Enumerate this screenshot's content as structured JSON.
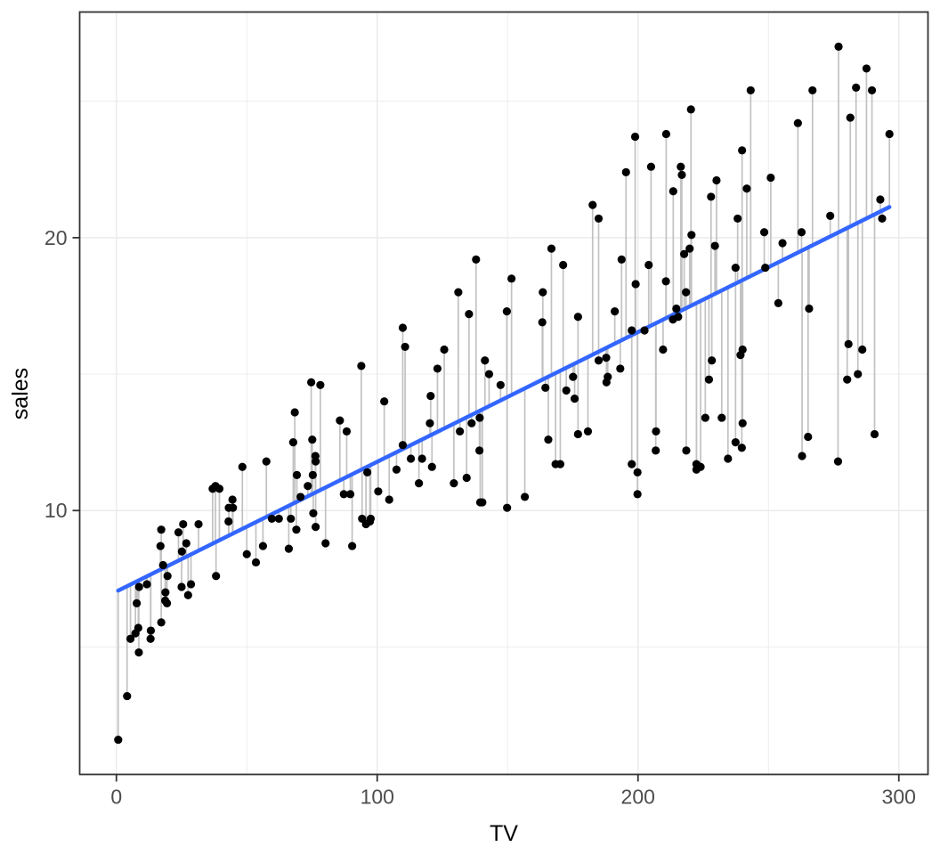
{
  "figure": {
    "background": "#FFFFFF"
  },
  "chart_data": {
    "type": "scatter",
    "title": "",
    "xlabel": "TV",
    "ylabel": "sales",
    "legend_position": "none",
    "grid": true,
    "x_domain": [
      -14.08,
      311.18
    ],
    "y_domain": [
      0.33,
      28.27
    ],
    "x_breaks": [
      0,
      100,
      200,
      300
    ],
    "x_minor_breaks": [
      50,
      150,
      250
    ],
    "y_breaks": [
      10,
      20
    ],
    "y_minor_breaks": [
      5,
      15,
      25
    ],
    "style": {
      "panel_background": "#FFFFFF",
      "panel_border_color": "#333333",
      "grid_major_color": "#EBEBEB",
      "grid_minor_color": "#EBEBEB",
      "tick_mark_color": "#333333",
      "tick_label_color": "#4D4D4D",
      "axis_title_color": "#000000",
      "point_color": "#000000",
      "point_radius": 4.6,
      "residual_segment_color": "#C2C2C2",
      "residual_segment_width": 1.7,
      "line_color": "#3366FF",
      "line_width": 4.5
    },
    "regression_line": {
      "model": "sales ~ TV",
      "intercept": 7.0326,
      "slope": 0.04754,
      "x_start": 0.7,
      "x_end": 296.4
    },
    "residual_segments_shown": true,
    "series": [
      {
        "name": "observations",
        "x": [
          230.1,
          44.5,
          17.2,
          151.5,
          180.8,
          8.7,
          57.5,
          120.2,
          8.6,
          199.8,
          66.1,
          214.7,
          23.8,
          97.5,
          204.1,
          195.4,
          67.8,
          281.4,
          69.2,
          147.3,
          218.4,
          237.4,
          13.2,
          228.3,
          62.3,
          262.9,
          142.9,
          240.1,
          248.8,
          70.6,
          292.9,
          112.9,
          97.2,
          265.6,
          95.7,
          290.7,
          266.9,
          74.7,
          43.1,
          228.0,
          202.5,
          177.0,
          293.6,
          206.9,
          25.1,
          175.1,
          89.7,
          239.9,
          227.2,
          66.9,
          199.8,
          100.4,
          216.4,
          182.6,
          262.7,
          198.9,
          7.3,
          136.2,
          210.8,
          210.7,
          53.5,
          261.3,
          239.3,
          102.7,
          131.1,
          69.0,
          31.5,
          139.3,
          237.4,
          216.8,
          199.1,
          109.8,
          26.8,
          129.4,
          213.4,
          16.9,
          27.5,
          120.5,
          5.4,
          116.0,
          76.4,
          239.8,
          75.3,
          68.4,
          213.5,
          193.2,
          76.3,
          110.7,
          88.3,
          109.8,
          134.3,
          28.6,
          217.7,
          250.9,
          107.4,
          163.3,
          197.6,
          184.9,
          289.7,
          135.2,
          222.4,
          296.4,
          280.2,
          187.9,
          238.2,
          137.9,
          25.0,
          90.4,
          13.1,
          255.4,
          225.8,
          241.7,
          175.7,
          209.6,
          78.2,
          75.1,
          139.2,
          76.4,
          125.7,
          19.4,
          141.3,
          18.8,
          224.0,
          123.1,
          229.5,
          87.2,
          7.8,
          80.2,
          220.3,
          59.6,
          0.7,
          265.2,
          8.4,
          219.8,
          36.9,
          48.3,
          25.6,
          273.7,
          43.0,
          184.9,
          73.4,
          193.7,
          220.5,
          104.6,
          96.2,
          140.3,
          240.1,
          243.2,
          38.0,
          44.7,
          280.7,
          121.0,
          197.6,
          171.3,
          187.8,
          4.1,
          93.9,
          149.8,
          11.7,
          131.7,
          172.5,
          85.7,
          188.4,
          163.5,
          117.2,
          234.5,
          17.9,
          206.8,
          215.4,
          284.3,
          50.0,
          164.5,
          19.6,
          168.4,
          222.4,
          276.9,
          248.4,
          170.2,
          276.7,
          165.6,
          156.6,
          218.5,
          56.2,
          287.6,
          253.8,
          205.0,
          139.5,
          191.1,
          286.0,
          18.7,
          39.5,
          75.5,
          17.2,
          166.8,
          149.7,
          38.2,
          94.2,
          177.0,
          283.6,
          232.1
        ],
        "y": [
          22.1,
          10.4,
          9.3,
          18.5,
          12.9,
          7.2,
          11.8,
          13.2,
          4.8,
          10.6,
          8.6,
          17.4,
          9.2,
          9.7,
          19.0,
          22.4,
          12.5,
          24.4,
          11.3,
          14.6,
          18.0,
          12.5,
          5.6,
          15.5,
          9.7,
          12.0,
          15.0,
          15.9,
          18.9,
          10.5,
          21.4,
          11.9,
          9.6,
          17.4,
          9.5,
          12.8,
          25.4,
          14.7,
          10.1,
          21.5,
          16.6,
          17.1,
          20.7,
          12.9,
          8.5,
          14.9,
          10.6,
          23.2,
          14.8,
          9.7,
          11.4,
          10.7,
          22.6,
          21.2,
          20.2,
          23.7,
          5.5,
          13.2,
          23.8,
          18.4,
          8.1,
          24.2,
          15.7,
          14.0,
          18.0,
          9.3,
          9.5,
          13.4,
          18.9,
          22.3,
          18.3,
          12.4,
          8.8,
          11.0,
          17.0,
          8.7,
          6.9,
          14.2,
          5.3,
          11.0,
          11.8,
          12.3,
          11.3,
          13.6,
          21.7,
          15.2,
          12.0,
          16.0,
          12.9,
          16.7,
          11.2,
          7.3,
          19.4,
          22.2,
          11.5,
          16.9,
          11.7,
          15.5,
          25.4,
          17.2,
          11.7,
          23.8,
          14.8,
          14.7,
          20.7,
          19.2,
          7.2,
          8.7,
          5.3,
          19.8,
          13.4,
          21.8,
          14.1,
          15.9,
          14.6,
          12.6,
          12.2,
          9.4,
          15.9,
          6.6,
          15.5,
          7.0,
          11.6,
          15.2,
          19.7,
          10.6,
          6.6,
          8.8,
          24.7,
          9.7,
          1.6,
          12.7,
          5.7,
          19.6,
          10.8,
          11.6,
          9.5,
          20.8,
          9.6,
          20.7,
          10.9,
          19.2,
          20.1,
          10.4,
          11.4,
          10.3,
          13.2,
          25.4,
          10.9,
          10.1,
          16.1,
          11.6,
          16.6,
          19.0,
          15.6,
          3.2,
          15.3,
          10.1,
          7.3,
          12.9,
          14.4,
          13.3,
          14.9,
          18.0,
          11.9,
          11.9,
          8.0,
          12.2,
          17.1,
          15.0,
          8.4,
          14.5,
          7.6,
          11.7,
          11.5,
          27.0,
          20.2,
          11.7,
          11.8,
          12.6,
          10.5,
          12.2,
          8.7,
          26.2,
          17.6,
          22.6,
          10.3,
          17.3,
          15.9,
          6.7,
          10.8,
          9.9,
          5.9,
          19.6,
          17.3,
          7.6,
          9.7,
          12.8,
          25.5,
          13.4
        ]
      }
    ]
  }
}
